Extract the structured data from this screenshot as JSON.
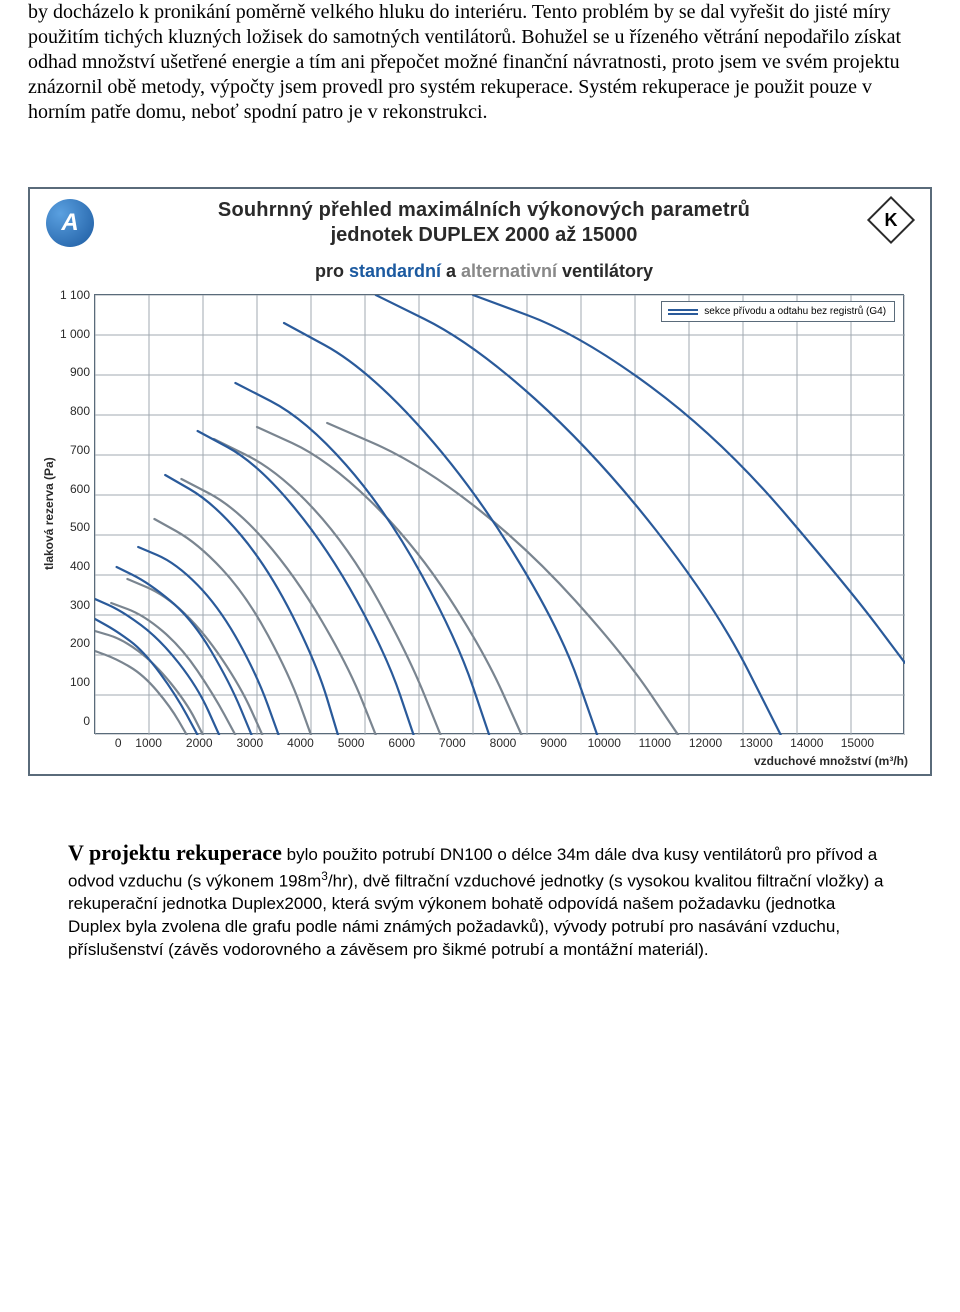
{
  "para1": "by docházelo k pronikání poměrně velkého hluku do interiéru. Tento problém by se dal vyřešit do jisté míry použitím tichých kluzných ložisek do samotných ventilátorů. Bohužel se u řízeného větrání nepodařilo získat odhad množství ušetřené energie a tím ani přepočet možné finanční návratnosti, proto jsem ve svém projektu znázornil obě metody, výpočty jsem provedl pro systém rekuperace. Systém rekuperace je použit pouze v horním patře domu, neboť spodní patro je v rekonstrukci.",
  "figure": {
    "logo_letter": "A",
    "title_line1": "Souhrnný přehled maximálních výkonových parametrů",
    "title_line2": "jednotek DUPLEX 2000 až 15000",
    "subtitle_pre": "pro ",
    "subtitle_std": "standardní",
    "subtitle_mid": " a ",
    "subtitle_alt": "alternativní",
    "subtitle_post": " ventilátory",
    "k_mark": "K",
    "ylabel": "tlaková rezerva (Pa)",
    "xlabel": "vzduchové množství (m³/h)",
    "legend": "sekce přívodu a odtahu bez registrů (G4)",
    "chart": {
      "xlim": [
        0,
        15000
      ],
      "ylim": [
        0,
        1100
      ],
      "xtick_step": 1000,
      "ytick_step": 100,
      "grid_color": "#a0a8b0",
      "xticks": [
        "0",
        "1000",
        "2000",
        "3000",
        "4000",
        "5000",
        "6000",
        "7000",
        "8000",
        "9000",
        "10000",
        "11000",
        "12000",
        "13000",
        "14000",
        "15000"
      ],
      "yticks": [
        "1 100",
        "1 000",
        "900",
        "800",
        "700",
        "600",
        "500",
        "400",
        "300",
        "200",
        "100",
        "0"
      ],
      "blue_color": "#2a5a9a",
      "gray_color": "#7a8590",
      "line_width": 2.2,
      "blue_curves": [
        [
          [
            0,
            290
          ],
          [
            400,
            260
          ],
          [
            900,
            210
          ],
          [
            1500,
            100
          ],
          [
            1900,
            0
          ]
        ],
        [
          [
            0,
            340
          ],
          [
            500,
            310
          ],
          [
            1200,
            240
          ],
          [
            1900,
            120
          ],
          [
            2300,
            0
          ]
        ],
        [
          [
            400,
            420
          ],
          [
            1000,
            380
          ],
          [
            1800,
            290
          ],
          [
            2500,
            130
          ],
          [
            2900,
            0
          ]
        ],
        [
          [
            800,
            470
          ],
          [
            1500,
            430
          ],
          [
            2300,
            320
          ],
          [
            3000,
            150
          ],
          [
            3400,
            0
          ]
        ],
        [
          [
            1300,
            650
          ],
          [
            2200,
            580
          ],
          [
            3200,
            420
          ],
          [
            4100,
            180
          ],
          [
            4500,
            0
          ]
        ],
        [
          [
            1900,
            760
          ],
          [
            3000,
            680
          ],
          [
            4300,
            470
          ],
          [
            5400,
            200
          ],
          [
            5900,
            0
          ]
        ],
        [
          [
            2600,
            880
          ],
          [
            3900,
            790
          ],
          [
            5400,
            560
          ],
          [
            6700,
            240
          ],
          [
            7300,
            0
          ]
        ],
        [
          [
            3500,
            1030
          ],
          [
            5000,
            920
          ],
          [
            6900,
            640
          ],
          [
            8600,
            270
          ],
          [
            9300,
            0
          ]
        ],
        [
          [
            5200,
            1100
          ],
          [
            7000,
            980
          ],
          [
            9300,
            700
          ],
          [
            11500,
            320
          ],
          [
            12700,
            0
          ]
        ],
        [
          [
            7000,
            1100
          ],
          [
            9000,
            1000
          ],
          [
            11600,
            740
          ],
          [
            14000,
            360
          ],
          [
            15000,
            180
          ]
        ]
      ],
      "gray_curves": [
        [
          [
            0,
            210
          ],
          [
            400,
            190
          ],
          [
            900,
            150
          ],
          [
            1400,
            70
          ],
          [
            1700,
            0
          ]
        ],
        [
          [
            0,
            260
          ],
          [
            500,
            240
          ],
          [
            1100,
            180
          ],
          [
            1700,
            80
          ],
          [
            2000,
            0
          ]
        ],
        [
          [
            300,
            330
          ],
          [
            900,
            300
          ],
          [
            1600,
            220
          ],
          [
            2200,
            100
          ],
          [
            2600,
            0
          ]
        ],
        [
          [
            600,
            390
          ],
          [
            1300,
            350
          ],
          [
            2000,
            260
          ],
          [
            2700,
            120
          ],
          [
            3100,
            0
          ]
        ],
        [
          [
            1100,
            540
          ],
          [
            1900,
            480
          ],
          [
            2800,
            350
          ],
          [
            3600,
            150
          ],
          [
            4000,
            0
          ]
        ],
        [
          [
            1600,
            640
          ],
          [
            2600,
            570
          ],
          [
            3700,
            400
          ],
          [
            4700,
            170
          ],
          [
            5200,
            0
          ]
        ],
        [
          [
            2200,
            740
          ],
          [
            3400,
            660
          ],
          [
            4700,
            470
          ],
          [
            5800,
            200
          ],
          [
            6400,
            0
          ]
        ],
        [
          [
            3000,
            770
          ],
          [
            4300,
            690
          ],
          [
            5900,
            480
          ],
          [
            7200,
            210
          ],
          [
            7900,
            0
          ]
        ],
        [
          [
            4300,
            780
          ],
          [
            6000,
            680
          ],
          [
            8000,
            470
          ],
          [
            9800,
            200
          ],
          [
            10800,
            0
          ]
        ]
      ]
    }
  },
  "bottom": {
    "lead": "V projektu rekuperace",
    "rest1": " bylo použito potrubí DN100 o délce 34m dále dva kusy ventilátorů pro přívod a odvod vzduchu (s výkonem 198m",
    "sup": "3",
    "rest2": "/hr), dvě filtrační vzduchové jednotky (s vysokou kvalitou filtrační vložky) a rekuperační jednotka Duplex2000, která svým výkonem bohatě odpovídá našem požadavku (jednotka Duplex byla zvolena dle grafu podle námi známých požadavků), vývody potrubí pro nasávání vzduchu, příslušenství (závěs vodorovného a závěsem pro šikmé potrubí a montážní materiál)."
  }
}
